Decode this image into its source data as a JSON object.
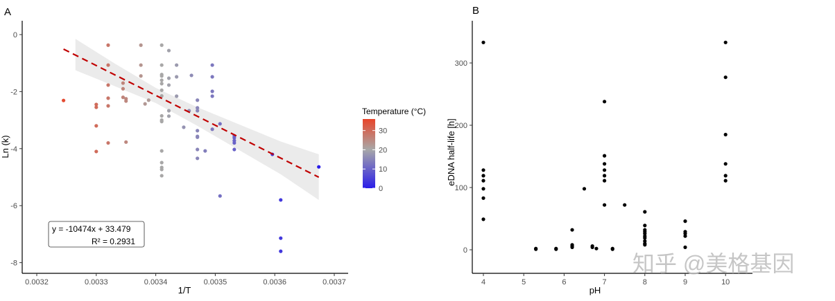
{
  "chart_data": [
    {
      "panel_label": "A",
      "type": "scatter",
      "xlabel": "1/T",
      "ylabel": "Ln (k)",
      "xlim": [
        0.00318,
        0.00372
      ],
      "ylim": [
        -8.4,
        0.4
      ],
      "xticks": [
        "0.0032",
        "0.0033",
        "0.0034",
        "0.0035",
        "0.0036",
        "0.0037"
      ],
      "yticks": [
        "0",
        "-2",
        "-4",
        "-6",
        "-8"
      ],
      "grid": false,
      "color_by": "Temperature (°C)",
      "colorbar": {
        "title": "Temperature (°C)",
        "ticks": [
          "30",
          "20",
          "10",
          "0"
        ],
        "range": [
          0,
          36
        ],
        "colors": {
          "low": "#2a1de8",
          "mid": "#a8a8a8",
          "high": "#e8452a"
        }
      },
      "legend_position": "right",
      "points": [
        {
          "x": 0.003245,
          "y": -2.31
        },
        {
          "x": 0.0033,
          "y": -2.45
        },
        {
          "x": 0.0033,
          "y": -2.55
        },
        {
          "x": 0.0033,
          "y": -3.2
        },
        {
          "x": 0.0033,
          "y": -4.1
        },
        {
          "x": 0.00332,
          "y": -0.37
        },
        {
          "x": 0.00332,
          "y": -1.07
        },
        {
          "x": 0.00332,
          "y": -1.77
        },
        {
          "x": 0.00332,
          "y": -2.23
        },
        {
          "x": 0.00332,
          "y": -2.5
        },
        {
          "x": 0.00332,
          "y": -3.8
        },
        {
          "x": 0.003345,
          "y": -1.7
        },
        {
          "x": 0.003345,
          "y": -1.9
        },
        {
          "x": 0.003345,
          "y": -2.2
        },
        {
          "x": 0.00335,
          "y": -2.25
        },
        {
          "x": 0.00335,
          "y": -2.33
        },
        {
          "x": 0.00335,
          "y": -3.77
        },
        {
          "x": 0.003375,
          "y": -0.37
        },
        {
          "x": 0.003375,
          "y": -1.07
        },
        {
          "x": 0.003375,
          "y": -1.45
        },
        {
          "x": 0.003382,
          "y": -2.43
        },
        {
          "x": 0.003388,
          "y": -2.3
        },
        {
          "x": 0.00341,
          "y": -0.37
        },
        {
          "x": 0.00341,
          "y": -1.07
        },
        {
          "x": 0.00341,
          "y": -1.4
        },
        {
          "x": 0.00341,
          "y": -1.45
        },
        {
          "x": 0.00341,
          "y": -1.6
        },
        {
          "x": 0.00341,
          "y": -1.72
        },
        {
          "x": 0.00341,
          "y": -1.95
        },
        {
          "x": 0.00341,
          "y": -2.15
        },
        {
          "x": 0.00341,
          "y": -2.85
        },
        {
          "x": 0.00341,
          "y": -3.0
        },
        {
          "x": 0.00341,
          "y": -3.05
        },
        {
          "x": 0.00341,
          "y": -4.08
        },
        {
          "x": 0.00341,
          "y": -4.49
        },
        {
          "x": 0.00341,
          "y": -4.66
        },
        {
          "x": 0.00341,
          "y": -4.73
        },
        {
          "x": 0.00341,
          "y": -4.95
        },
        {
          "x": 0.003422,
          "y": -0.56
        },
        {
          "x": 0.003422,
          "y": -1.53
        },
        {
          "x": 0.003422,
          "y": -1.77
        },
        {
          "x": 0.003422,
          "y": -2.67
        },
        {
          "x": 0.003422,
          "y": -2.86
        },
        {
          "x": 0.003435,
          "y": -1.07
        },
        {
          "x": 0.003435,
          "y": -1.48
        },
        {
          "x": 0.003435,
          "y": -2.16
        },
        {
          "x": 0.003447,
          "y": -3.25
        },
        {
          "x": 0.003456,
          "y": -2.67
        },
        {
          "x": 0.00346,
          "y": -1.43
        },
        {
          "x": 0.00347,
          "y": -2.3
        },
        {
          "x": 0.00347,
          "y": -2.57
        },
        {
          "x": 0.00347,
          "y": -2.67
        },
        {
          "x": 0.00347,
          "y": -3.37
        },
        {
          "x": 0.00347,
          "y": -3.57
        },
        {
          "x": 0.00347,
          "y": -3.6
        },
        {
          "x": 0.00347,
          "y": -4.03
        },
        {
          "x": 0.00347,
          "y": -4.34
        },
        {
          "x": 0.003483,
          "y": -4.08
        },
        {
          "x": 0.003495,
          "y": -1.07
        },
        {
          "x": 0.003495,
          "y": -1.48
        },
        {
          "x": 0.003495,
          "y": -1.99
        },
        {
          "x": 0.003495,
          "y": -2.16
        },
        {
          "x": 0.003495,
          "y": -3.32
        },
        {
          "x": 0.003508,
          "y": -3.13
        },
        {
          "x": 0.003508,
          "y": -5.66
        },
        {
          "x": 0.003532,
          "y": -3.55
        },
        {
          "x": 0.003532,
          "y": -3.62
        },
        {
          "x": 0.003532,
          "y": -3.72
        },
        {
          "x": 0.003532,
          "y": -3.8
        },
        {
          "x": 0.003532,
          "y": -4.03
        },
        {
          "x": 0.003596,
          "y": -4.2
        },
        {
          "x": 0.00361,
          "y": -5.8
        },
        {
          "x": 0.00361,
          "y": -7.14
        },
        {
          "x": 0.00361,
          "y": -7.6
        },
        {
          "x": 0.003674,
          "y": -4.64
        }
      ],
      "fit": {
        "slope": -10474,
        "intercept": 33.479,
        "x_range": [
          0.003245,
          0.003674
        ],
        "line_color": "#c00000",
        "style": "dashed"
      },
      "confidence_band": {
        "x": [
          0.003265,
          0.00333,
          0.0034,
          0.00347,
          0.00354,
          0.00361,
          0.003674
        ],
        "upper": [
          -0.15,
          -1.0,
          -1.87,
          -2.55,
          -3.15,
          -3.75,
          -4.2
        ],
        "lower": [
          -1.25,
          -1.8,
          -2.4,
          -3.2,
          -4.05,
          -4.9,
          -5.8
        ]
      },
      "annotation": {
        "equation": "y = -10474x + 33.479",
        "r2": "R² = 0.2931"
      }
    },
    {
      "panel_label": "B",
      "type": "scatter",
      "xlabel": "pH",
      "ylabel": "eDNA half-life [h]",
      "xlim": [
        3.7,
        10.6
      ],
      "ylim": [
        -38,
        368
      ],
      "xticks": [
        "4",
        "5",
        "6",
        "7",
        "8",
        "9",
        "10"
      ],
      "yticks": [
        "0",
        "100",
        "200",
        "300"
      ],
      "grid": false,
      "point_color": "#000000",
      "points": [
        {
          "x": 4,
          "y": 333
        },
        {
          "x": 4,
          "y": 128
        },
        {
          "x": 4,
          "y": 119
        },
        {
          "x": 4,
          "y": 111
        },
        {
          "x": 4,
          "y": 98
        },
        {
          "x": 4,
          "y": 83
        },
        {
          "x": 4,
          "y": 49
        },
        {
          "x": 5.3,
          "y": 2
        },
        {
          "x": 5.3,
          "y": 1
        },
        {
          "x": 5.8,
          "y": 2
        },
        {
          "x": 5.8,
          "y": 1
        },
        {
          "x": 6.2,
          "y": 32
        },
        {
          "x": 6.2,
          "y": 8
        },
        {
          "x": 6.2,
          "y": 6
        },
        {
          "x": 6.2,
          "y": 4
        },
        {
          "x": 6.5,
          "y": 98
        },
        {
          "x": 6.7,
          "y": 6
        },
        {
          "x": 6.7,
          "y": 4
        },
        {
          "x": 6.8,
          "y": 2
        },
        {
          "x": 7,
          "y": 238
        },
        {
          "x": 7,
          "y": 151
        },
        {
          "x": 7,
          "y": 138
        },
        {
          "x": 7,
          "y": 128
        },
        {
          "x": 7,
          "y": 119
        },
        {
          "x": 7,
          "y": 111
        },
        {
          "x": 7,
          "y": 72
        },
        {
          "x": 7.2,
          "y": 2
        },
        {
          "x": 7.2,
          "y": 1
        },
        {
          "x": 7.5,
          "y": 72
        },
        {
          "x": 8,
          "y": 61
        },
        {
          "x": 8,
          "y": 39
        },
        {
          "x": 8,
          "y": 32
        },
        {
          "x": 8,
          "y": 29
        },
        {
          "x": 8,
          "y": 26
        },
        {
          "x": 8,
          "y": 22
        },
        {
          "x": 8,
          "y": 19
        },
        {
          "x": 8,
          "y": 14
        },
        {
          "x": 8,
          "y": 10
        },
        {
          "x": 8,
          "y": 8
        },
        {
          "x": 9,
          "y": 46
        },
        {
          "x": 9,
          "y": 29
        },
        {
          "x": 9,
          "y": 26
        },
        {
          "x": 9,
          "y": 22
        },
        {
          "x": 9,
          "y": 4
        },
        {
          "x": 10,
          "y": 333
        },
        {
          "x": 10,
          "y": 277
        },
        {
          "x": 10,
          "y": 185
        },
        {
          "x": 10,
          "y": 138
        },
        {
          "x": 10,
          "y": 119
        },
        {
          "x": 10,
          "y": 111
        }
      ]
    }
  ],
  "watermark": "知乎 @美格基因"
}
